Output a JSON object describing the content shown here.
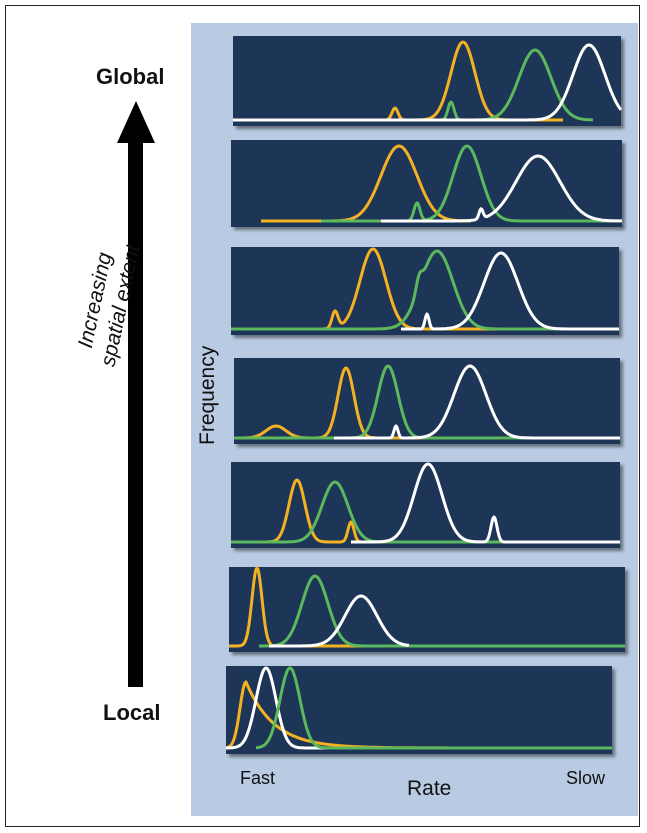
{
  "labels": {
    "top": "Global",
    "bottom": "Local",
    "arrow_line1": "Increasing",
    "arrow_line2": "spatial extent",
    "y_axis": "Frequency",
    "x_axis": "Rate",
    "x_low": "Fast",
    "x_high": "Slow"
  },
  "colors": {
    "panel_bg": "#1d3557",
    "figure_bg": "#b8cbe2",
    "orange": "#f4b223",
    "green": "#5cb85c",
    "white": "#ffffff"
  }
}
